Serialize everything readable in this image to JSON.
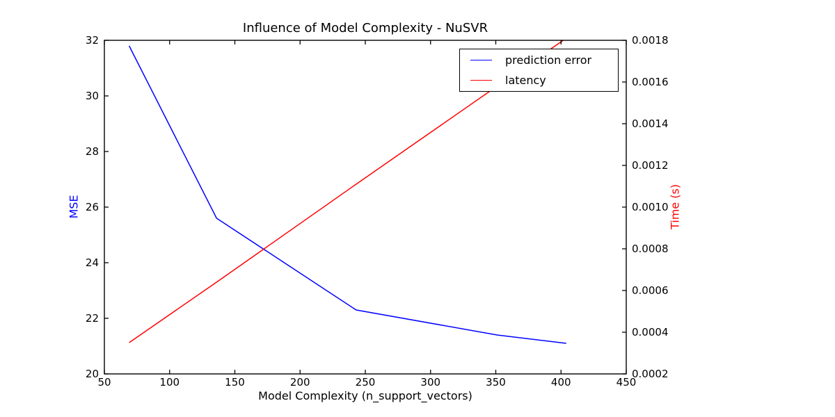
{
  "figure": {
    "background": "#ffffff",
    "axis_color": "#000000",
    "tick_label_color": "#000000"
  },
  "legend": {
    "position": "upper right",
    "items": [
      {
        "label": "prediction error",
        "color": "#0000ff"
      },
      {
        "label": "latency",
        "color": "#ff0000"
      }
    ]
  },
  "chart_data": {
    "type": "line",
    "title": "Influence of Model Complexity - NuSVR",
    "xlabel": "Model Complexity (n_support_vectors)",
    "ylabel_left": "MSE",
    "ylabel_right": "Time (s)",
    "ylabel_left_color": "#0000ff",
    "ylabel_right_color": "#ff0000",
    "xlim": [
      50,
      450
    ],
    "ylim_left": [
      20,
      32
    ],
    "ylim_right": [
      0.0002,
      0.0018
    ],
    "xticks": [
      "50",
      "100",
      "150",
      "200",
      "250",
      "300",
      "350",
      "400",
      "450"
    ],
    "yticks_left": [
      "20",
      "22",
      "24",
      "26",
      "28",
      "30",
      "32"
    ],
    "yticks_right": [
      "0.0002",
      "0.0004",
      "0.0006",
      "0.0008",
      "0.0010",
      "0.0012",
      "0.0014",
      "0.0016",
      "0.0018"
    ],
    "grid": false,
    "legend_position": "upper right",
    "series": [
      {
        "name": "prediction error",
        "axis": "left",
        "color": "#0000ff",
        "x": [
          69,
          136,
          243,
          351,
          404
        ],
        "y": [
          31.8,
          25.6,
          22.3,
          21.4,
          21.1
        ]
      },
      {
        "name": "latency",
        "axis": "right",
        "color": "#ff0000",
        "x": [
          69,
          136,
          243,
          351,
          404
        ],
        "y": [
          0.00035,
          0.00064,
          0.00111,
          0.00158,
          0.00181
        ]
      }
    ]
  }
}
